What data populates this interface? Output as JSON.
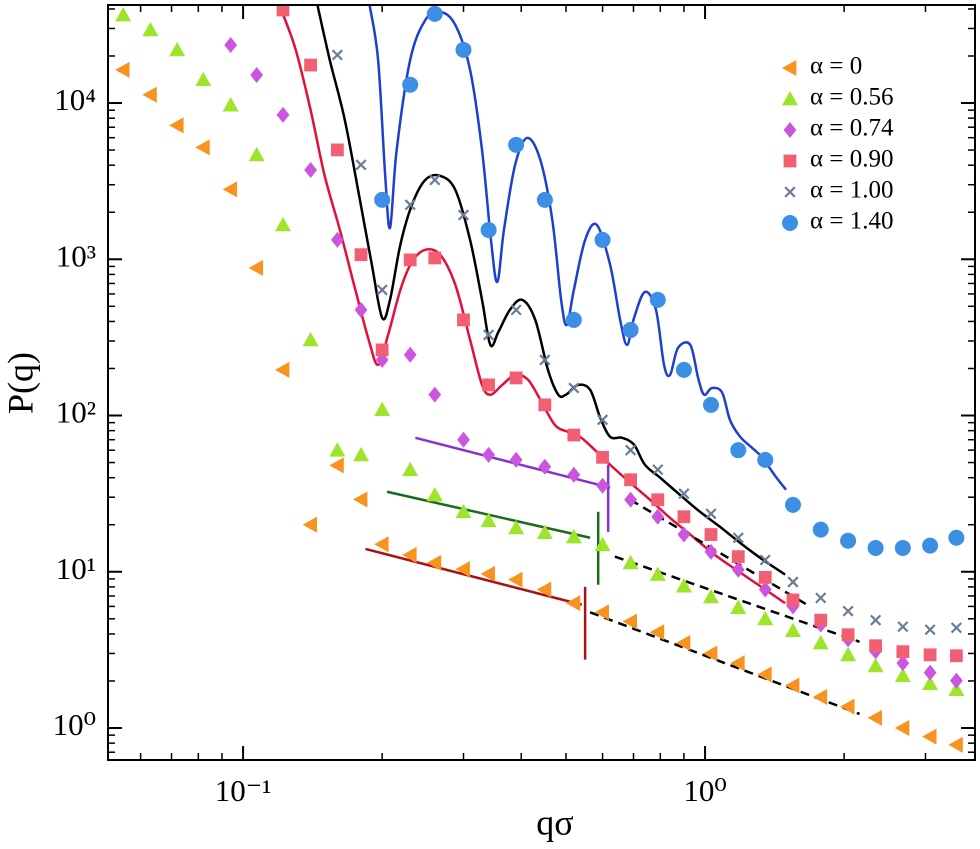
{
  "chart_data": {
    "type": "scatter",
    "x_label": "qσ",
    "y_label": "P(q)",
    "log_x": true,
    "log_y": true,
    "xlim": [
      0.051,
      3.84
    ],
    "ylim": [
      0.624,
      42400
    ],
    "xticks": [
      {
        "value": 0.1,
        "label": "10⁻¹"
      },
      {
        "value": 1,
        "label": "10⁰"
      }
    ],
    "yticks": [
      {
        "value": 1,
        "label": "10⁰"
      },
      {
        "value": 10,
        "label": "10¹"
      },
      {
        "value": 100,
        "label": "10²"
      },
      {
        "value": 1000,
        "label": "10³"
      },
      {
        "value": 10000,
        "label": "10⁴"
      }
    ],
    "legend": "upper right",
    "x": [
      0.055,
      0.063,
      0.072,
      0.082,
      0.094,
      0.107,
      0.122,
      0.14,
      0.16,
      0.18,
      0.2,
      0.23,
      0.26,
      0.3,
      0.34,
      0.39,
      0.45,
      0.52,
      0.6,
      0.69,
      0.79,
      0.9,
      1.03,
      1.18,
      1.35,
      1.55,
      1.78,
      2.04,
      2.34,
      2.68,
      3.07,
      3.5
    ],
    "series": [
      {
        "name": "α = 0",
        "color": "#f7931e",
        "marker": "triangle-left",
        "values": [
          16300,
          11300,
          7200,
          5200,
          2800,
          880,
          196,
          20,
          48,
          29,
          15,
          12.8,
          11.4,
          10.4,
          9.7,
          8.9,
          7.7,
          6.3,
          5.5,
          4.8,
          4.1,
          3.5,
          3.0,
          2.6,
          2.2,
          1.87,
          1.58,
          1.37,
          1.16,
          1.0,
          0.88,
          0.78
        ]
      },
      {
        "name": "α = 0.56",
        "color": "#9de52b",
        "marker": "triangle-up",
        "values": [
          36600,
          29400,
          21900,
          14100,
          9700,
          4660,
          1660,
          305,
          60,
          56,
          109,
          45,
          31,
          24.2,
          21.2,
          19.1,
          17.8,
          16.7,
          14.9,
          11.4,
          9.6,
          8.1,
          6.9,
          5.9,
          5.0,
          4.2,
          3.5,
          2.94,
          2.5,
          2.16,
          1.92,
          1.76
        ]
      },
      {
        "name": "α = 0.74",
        "color": "#cc55e0",
        "marker": "diamond",
        "values": [
          null,
          null,
          null,
          null,
          23500,
          15100,
          8400,
          3730,
          1330,
          474,
          227,
          245,
          136,
          70,
          56,
          52,
          47,
          41.8,
          35.5,
          28.9,
          22.5,
          17.3,
          13.4,
          10.3,
          7.7,
          6.0,
          4.6,
          3.7,
          3.1,
          2.6,
          2.26,
          2.01
        ]
      },
      {
        "name": "α = 0.90",
        "color": "#f25f73",
        "marker": "square",
        "values": [
          null,
          null,
          null,
          null,
          null,
          null,
          39400,
          17500,
          5010,
          1070,
          263,
          991,
          1020,
          409,
          157,
          174,
          117,
          75,
          54,
          38.8,
          28.9,
          22.5,
          17.3,
          12.5,
          9.2,
          6.6,
          4.9,
          3.95,
          3.36,
          3.08,
          2.94,
          2.9
        ]
      },
      {
        "name": "α = 1.00",
        "color": "#6b7d92",
        "marker": "x",
        "values": [
          null,
          null,
          null,
          null,
          null,
          null,
          null,
          null,
          20300,
          4020,
          637,
          2230,
          3220,
          1920,
          328,
          474,
          227,
          150,
          93.8,
          60,
          45,
          31.6,
          23.5,
          16.5,
          11.9,
          8.6,
          6.8,
          5.6,
          4.9,
          4.45,
          4.26,
          4.38
        ]
      },
      {
        "name": "α = 1.40",
        "color": "#3d8fe6",
        "marker": "circle",
        "values": [
          null,
          null,
          null,
          null,
          null,
          null,
          null,
          null,
          null,
          null,
          2400,
          13100,
          37200,
          21900,
          1540,
          5400,
          2400,
          409,
          1330,
          353,
          550,
          196,
          117,
          60,
          52,
          26.8,
          18.6,
          15.8,
          14.2,
          14.2,
          14.7,
          16.5
        ]
      }
    ],
    "lines": [
      {
        "color": "#1f3fd0",
        "smooth": true,
        "dashed": false,
        "x": [
          0.188,
          0.196,
          0.203,
          0.208,
          0.215,
          0.23,
          0.248,
          0.267,
          0.288,
          0.31,
          0.329,
          0.344,
          0.355,
          0.367,
          0.388,
          0.412,
          0.44,
          0.467,
          0.488,
          0.502,
          0.52,
          0.55,
          0.583,
          0.623,
          0.655,
          0.678,
          0.702,
          0.741,
          0.783,
          0.815,
          0.84,
          0.874,
          0.929,
          0.966,
          0.995,
          1.035,
          1.089,
          1.132,
          1.191,
          1.264,
          1.328,
          1.418,
          1.497
        ],
        "y": [
          41800,
          18900,
          3470,
          1590,
          5010,
          18900,
          34000,
          38300,
          31600,
          16300,
          5010,
          1330,
          716,
          1540,
          4020,
          5980,
          4320,
          1790,
          550,
          380,
          637,
          1330,
          1660,
          921,
          409,
          283,
          422,
          618,
          474,
          211,
          182,
          271,
          283,
          174,
          136,
          150,
          140,
          93.8,
          73.1,
          62.1,
          54,
          41.1,
          33.5
        ]
      },
      {
        "color": "#000000",
        "smooth": true,
        "dashed": false,
        "x": [
          0.145,
          0.154,
          0.166,
          0.179,
          0.19,
          0.2,
          0.208,
          0.219,
          0.232,
          0.248,
          0.267,
          0.288,
          0.31,
          0.329,
          0.343,
          0.357,
          0.378,
          0.402,
          0.429,
          0.457,
          0.481,
          0.5,
          0.531,
          0.564,
          0.593,
          0.623,
          0.661,
          0.702,
          0.741,
          0.8,
          0.883,
          0.975,
          1.077,
          1.191,
          1.315,
          1.49
        ],
        "y": [
          41800,
          18900,
          7800,
          2400,
          921,
          422,
          550,
          1240,
          2230,
          3220,
          3420,
          2780,
          1330,
          550,
          283,
          343,
          474,
          550,
          409,
          196,
          136,
          136,
          157,
          146,
          96.7,
          73.1,
          72,
          65,
          48.4,
          39.9,
          31,
          24.2,
          19.4,
          15.3,
          12.3,
          9.6
        ]
      },
      {
        "color": "#e0103a",
        "smooth": true,
        "dashed": false,
        "x": [
          0.121,
          0.13,
          0.14,
          0.15,
          0.162,
          0.175,
          0.187,
          0.196,
          0.206,
          0.219,
          0.232,
          0.248,
          0.267,
          0.288,
          0.31,
          0.329,
          0.343,
          0.364,
          0.388,
          0.414,
          0.44,
          0.473,
          0.504,
          0.536,
          0.578,
          0.623,
          0.689,
          0.76,
          0.84,
          0.929,
          1.051,
          1.191,
          1.349,
          1.49
        ],
        "y": [
          39400,
          21900,
          9030,
          3470,
          1540,
          637,
          305,
          211,
          328,
          637,
          962,
          1150,
          1070,
          686,
          305,
          157,
          136,
          157,
          182,
          169,
          126,
          87.1,
          78.7,
          73.1,
          60,
          48.4,
          37.1,
          28.9,
          22.1,
          17.3,
          12.8,
          9.9,
          7.7,
          6.3
        ]
      },
      {
        "color": "#8833cc",
        "smooth": false,
        "dashed": false,
        "x": [
          0.236,
          0.623
        ],
        "y": [
          72,
          34.5
        ]
      },
      {
        "color": "#1a6b1a",
        "smooth": false,
        "dashed": false,
        "x": [
          0.205,
          0.564
        ],
        "y": [
          32.5,
          16.5
        ]
      },
      {
        "color": "#b01010",
        "smooth": false,
        "dashed": false,
        "x": [
          0.184,
          0.541
        ],
        "y": [
          14,
          6.15
        ]
      },
      {
        "color": "#000000",
        "smooth": false,
        "dashed": true,
        "x": [
          0.564,
          2.16
        ],
        "y": [
          5.5,
          1.23
        ]
      },
      {
        "color": "#000000",
        "smooth": false,
        "dashed": true,
        "x": [
          0.638,
          2.16
        ],
        "y": [
          12.5,
          3.56
        ]
      },
      {
        "color": "#000000",
        "smooth": false,
        "dashed": true,
        "x": [
          0.689,
          1.687
        ],
        "y": [
          28.9,
          6.0
        ]
      },
      {
        "color": "#8833cc",
        "smooth": false,
        "dashed": false,
        "x": [
          0.617,
          0.617
        ],
        "y": [
          48.4,
          18
        ]
      },
      {
        "color": "#1a6b1a",
        "smooth": false,
        "dashed": false,
        "x": [
          0.587,
          0.587
        ],
        "y": [
          24.2,
          8.26
        ]
      },
      {
        "color": "#b01010",
        "smooth": false,
        "dashed": false,
        "x": [
          0.55,
          0.55
        ],
        "y": [
          8.0,
          2.74
        ]
      }
    ]
  }
}
